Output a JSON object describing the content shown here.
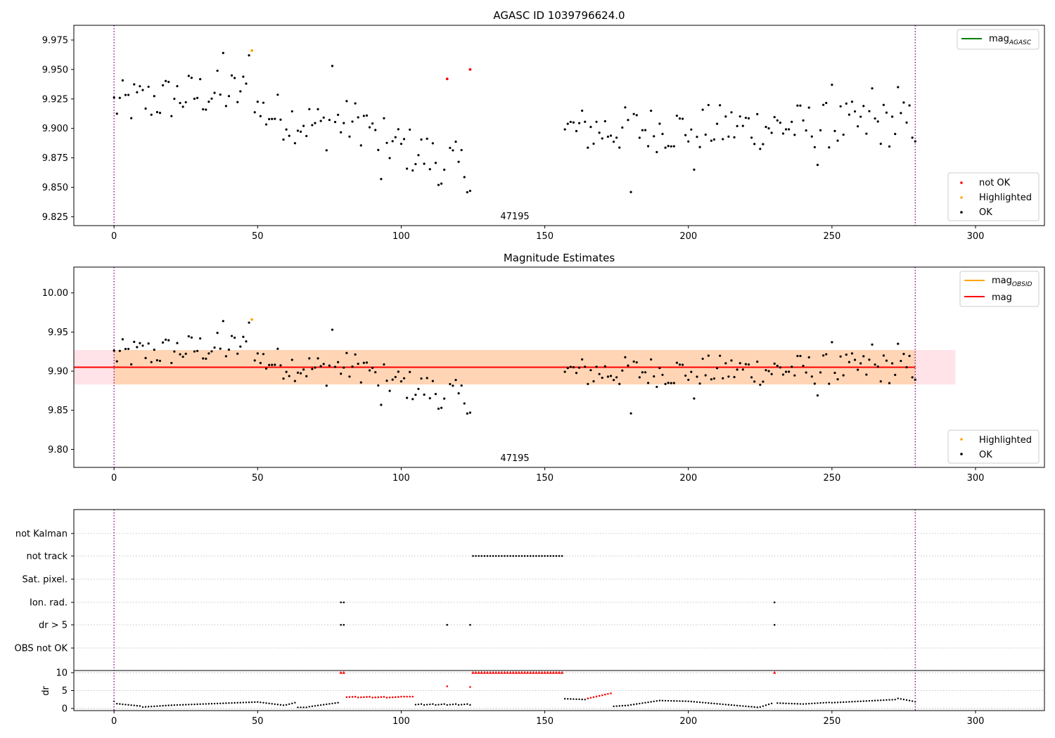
{
  "chart_data": [
    {
      "type": "scatter",
      "title": "AGASC ID 1039796624.0",
      "annotation": "47195",
      "xlim": [
        -14,
        324
      ],
      "ylim": [
        9.8175,
        9.9875
      ],
      "xticks": [
        "0",
        "50",
        "100",
        "150",
        "200",
        "250",
        "300"
      ],
      "yticks": [
        "9.825",
        "9.850",
        "9.875",
        "9.900",
        "9.925",
        "9.950",
        "9.975"
      ],
      "obs_boundaries": [
        0,
        279
      ],
      "legend_lines": [
        {
          "label": "mag",
          "sub": "AGASC",
          "color": "#008000"
        }
      ],
      "legend_points": [
        {
          "label": "not OK",
          "color": "#ff0000"
        },
        {
          "label": "Highlighted",
          "color": "#ffa500"
        },
        {
          "label": "OK",
          "color": "#000000"
        }
      ],
      "series": [
        {
          "name": "not OK",
          "color": "#ff0000",
          "points": [
            [
              116,
              9.942
            ],
            [
              124,
              9.95
            ]
          ]
        },
        {
          "name": "Highlighted",
          "color": "#ffa500",
          "points": [
            [
              48,
              9.966
            ]
          ]
        }
      ]
    },
    {
      "type": "scatter",
      "title": "Magnitude Estimates",
      "annotation": "47195",
      "xlim": [
        -14,
        324
      ],
      "ylim": [
        9.777,
        10.033
      ],
      "xticks": [
        "0",
        "50",
        "100",
        "150",
        "200",
        "250",
        "300"
      ],
      "yticks": [
        "9.80",
        "9.85",
        "9.90",
        "9.95",
        "10.00"
      ],
      "obs_boundaries": [
        0,
        279
      ],
      "mag": 9.905,
      "mag_band": [
        9.883,
        9.927
      ],
      "band_x": [
        -14,
        293
      ],
      "band_obs_x": [
        0,
        279
      ],
      "legend_lines": [
        {
          "label": "mag",
          "sub": "OBSID",
          "color": "#ffa500"
        },
        {
          "label": "mag",
          "sub": "",
          "color": "#ff0000"
        }
      ],
      "legend_points": [
        {
          "label": "Highlighted",
          "color": "#ffa500"
        },
        {
          "label": "OK",
          "color": "#000000"
        }
      ],
      "series": [
        {
          "name": "Highlighted",
          "color": "#ffa500",
          "points": [
            [
              48,
              9.966
            ]
          ]
        }
      ]
    },
    {
      "type": "scatter",
      "xlim": [
        -14,
        324
      ],
      "xticks": [
        "0",
        "50",
        "100",
        "150",
        "200",
        "250",
        "300"
      ],
      "categories": [
        "not Kalman",
        "not track",
        "Sat. pixel.",
        "Ion. rad.",
        "dr > 5",
        "OBS not OK"
      ],
      "ylabel": "dr",
      "dr_ylim": [
        -0.6,
        10.6
      ],
      "dr_yticks": [
        "0",
        "5",
        "10"
      ],
      "flags": [
        {
          "category": "not track",
          "x_ranges": [
            [
              125,
              156
            ]
          ]
        },
        {
          "category": "Ion. rad.",
          "x": [
            79,
            80,
            230
          ]
        },
        {
          "category": "dr > 5",
          "x": [
            79,
            80,
            116,
            124,
            230
          ]
        }
      ],
      "dr_clipped_x": [
        79,
        80,
        230
      ],
      "dr_clipped_ranges": [
        [
          125,
          156
        ]
      ],
      "dr_red_points": [
        [
          116,
          6.2
        ],
        [
          124,
          6.0
        ]
      ]
    }
  ]
}
